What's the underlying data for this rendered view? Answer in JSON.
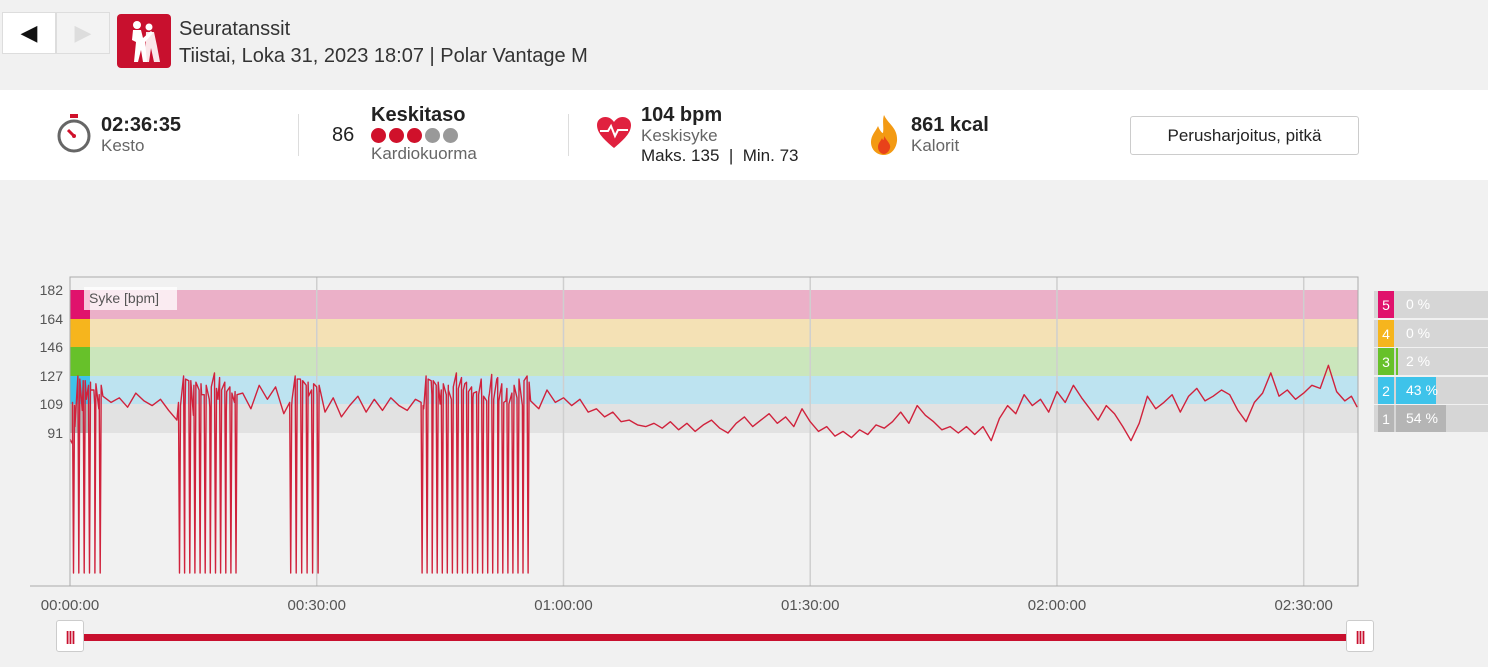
{
  "nav": {
    "prev_label": "◀",
    "next_label": "▶"
  },
  "header": {
    "sport": "Seuratanssit",
    "subtitle": "Tiistai, Loka 31, 2023 18:07 | Polar Vantage M"
  },
  "summary": {
    "duration_value": "02:36:35",
    "duration_label": "Kesto",
    "cardio_load_value": "86",
    "cardio_load_level": "Keskitaso",
    "cardio_load_label": "Kardiokuorma",
    "cardio_dots_filled": 3,
    "cardio_dots_total": 5,
    "hr_value": "104 bpm",
    "hr_label": "Keskisyke",
    "hr_max_min": "Maks. 135  |  Min. 73",
    "calories_value": "861 kcal",
    "calories_label": "Kalorit",
    "training_benefit": "Perusharjoitus, pitkä"
  },
  "chart_data": {
    "type": "line",
    "series_label": "Syke [bpm]",
    "x_unit": "hh:mm:ss",
    "x_ticks": [
      "00:00:00",
      "00:30:00",
      "01:00:00",
      "01:30:00",
      "02:00:00",
      "02:30:00"
    ],
    "y_ticks": [
      182,
      164,
      146,
      127,
      109,
      91
    ],
    "xlim_minutes": [
      0,
      156.6
    ],
    "ylim_bpm": [
      0,
      186
    ],
    "zones": [
      {
        "zone": 5,
        "min": 164,
        "max": 182,
        "color": "#e0126c",
        "band": "#ebb0c8",
        "percent": "0 %",
        "fraction": 0.0
      },
      {
        "zone": 4,
        "min": 146,
        "max": 164,
        "color": "#f6b51d",
        "band": "#f4e1b5",
        "percent": "0 %",
        "fraction": 0.0
      },
      {
        "zone": 3,
        "min": 127,
        "max": 146,
        "color": "#67c12a",
        "band": "#cbe6bc",
        "percent": "2 %",
        "fraction": 0.02
      },
      {
        "zone": 2,
        "min": 109,
        "max": 127,
        "color": "#3ec3ea",
        "band": "#bde3f0",
        "percent": "43 %",
        "fraction": 0.43
      },
      {
        "zone": 1,
        "min": 91,
        "max": 109,
        "color": "#b5b5b5",
        "band": "#e2e2e2",
        "percent": "54 %",
        "fraction": 0.54
      }
    ],
    "line_color": "#d0223c",
    "hr_points": [
      [
        0,
        87
      ],
      [
        0.3,
        84
      ],
      [
        0.6,
        95
      ],
      [
        1,
        92
      ],
      [
        1.5,
        105
      ],
      [
        2,
        112
      ],
      [
        2.5,
        118
      ],
      [
        3,
        109
      ],
      [
        3.5,
        106
      ],
      [
        4,
        114
      ],
      [
        5,
        110
      ],
      [
        6,
        113
      ],
      [
        7,
        107
      ],
      [
        8,
        116
      ],
      [
        9,
        111
      ],
      [
        10,
        108
      ],
      [
        11,
        112
      ],
      [
        12,
        105
      ],
      [
        13,
        99
      ],
      [
        14,
        108
      ],
      [
        15,
        102
      ],
      [
        16,
        115
      ],
      [
        17,
        107
      ],
      [
        18,
        112
      ],
      [
        19,
        104
      ],
      [
        20,
        110
      ],
      [
        21,
        116
      ],
      [
        22,
        106
      ],
      [
        23,
        121
      ],
      [
        24,
        112
      ],
      [
        25,
        120
      ],
      [
        26,
        103
      ],
      [
        27,
        112
      ],
      [
        28,
        125
      ],
      [
        29,
        114
      ],
      [
        30,
        120
      ],
      [
        31,
        104
      ],
      [
        32,
        113
      ],
      [
        33,
        101
      ],
      [
        34,
        108
      ],
      [
        35,
        114
      ],
      [
        36,
        104
      ],
      [
        37,
        112
      ],
      [
        38,
        105
      ],
      [
        39,
        113
      ],
      [
        40,
        108
      ],
      [
        41,
        105
      ],
      [
        42,
        112
      ],
      [
        43,
        106
      ],
      [
        44,
        115
      ],
      [
        45,
        109
      ],
      [
        46,
        118
      ],
      [
        47,
        111
      ],
      [
        48,
        122
      ],
      [
        49,
        113
      ],
      [
        50,
        125
      ],
      [
        51,
        116
      ],
      [
        52,
        126
      ],
      [
        53,
        111
      ],
      [
        54,
        121
      ],
      [
        55,
        108
      ],
      [
        56,
        111
      ],
      [
        57,
        106
      ],
      [
        58,
        118
      ],
      [
        59,
        110
      ],
      [
        60,
        113
      ],
      [
        61,
        108
      ],
      [
        62,
        112
      ],
      [
        63,
        104
      ],
      [
        64,
        106
      ],
      [
        65,
        101
      ],
      [
        66,
        104
      ],
      [
        67,
        98
      ],
      [
        68,
        99
      ],
      [
        69,
        96
      ],
      [
        70,
        95
      ],
      [
        71,
        97
      ],
      [
        72,
        94
      ],
      [
        73,
        98
      ],
      [
        74,
        93
      ],
      [
        75,
        97
      ],
      [
        76,
        92
      ],
      [
        77,
        96
      ],
      [
        78,
        99
      ],
      [
        79,
        94
      ],
      [
        80,
        91
      ],
      [
        81,
        97
      ],
      [
        82,
        101
      ],
      [
        83,
        95
      ],
      [
        84,
        99
      ],
      [
        85,
        103
      ],
      [
        86,
        97
      ],
      [
        87,
        101
      ],
      [
        88,
        95
      ],
      [
        89,
        106
      ],
      [
        90,
        98
      ],
      [
        91,
        92
      ],
      [
        92,
        95
      ],
      [
        93,
        89
      ],
      [
        94,
        92
      ],
      [
        95,
        88
      ],
      [
        96,
        93
      ],
      [
        97,
        90
      ],
      [
        98,
        96
      ],
      [
        99,
        94
      ],
      [
        100,
        98
      ],
      [
        101,
        104
      ],
      [
        102,
        97
      ],
      [
        103,
        108
      ],
      [
        104,
        102
      ],
      [
        105,
        98
      ],
      [
        106,
        93
      ],
      [
        107,
        95
      ],
      [
        108,
        91
      ],
      [
        109,
        95
      ],
      [
        110,
        90
      ],
      [
        111,
        95
      ],
      [
        112,
        86
      ],
      [
        113,
        100
      ],
      [
        114,
        108
      ],
      [
        115,
        103
      ],
      [
        116,
        115
      ],
      [
        117,
        108
      ],
      [
        118,
        112
      ],
      [
        119,
        104
      ],
      [
        120,
        117
      ],
      [
        121,
        110
      ],
      [
        122,
        121
      ],
      [
        123,
        113
      ],
      [
        124,
        106
      ],
      [
        125,
        99
      ],
      [
        126,
        108
      ],
      [
        127,
        103
      ],
      [
        128,
        95
      ],
      [
        129,
        86
      ],
      [
        130,
        97
      ],
      [
        131,
        114
      ],
      [
        132,
        106
      ],
      [
        133,
        110
      ],
      [
        134,
        115
      ],
      [
        135,
        104
      ],
      [
        136,
        114
      ],
      [
        137,
        119
      ],
      [
        138,
        111
      ],
      [
        139,
        114
      ],
      [
        140,
        118
      ],
      [
        141,
        115
      ],
      [
        142,
        105
      ],
      [
        143,
        98
      ],
      [
        144,
        110
      ],
      [
        145,
        116
      ],
      [
        146,
        129
      ],
      [
        147,
        114
      ],
      [
        148,
        118
      ],
      [
        149,
        112
      ],
      [
        150,
        116
      ],
      [
        151,
        121
      ],
      [
        152,
        119
      ],
      [
        153,
        134
      ],
      [
        154,
        117
      ],
      [
        155,
        111
      ],
      [
        155.8,
        114
      ],
      [
        156.5,
        107
      ]
    ],
    "dropout_windows_minutes": [
      [
        0.1,
        4
      ],
      [
        13,
        20.5
      ],
      [
        26.5,
        30.5
      ],
      [
        42.5,
        56
      ]
    ]
  }
}
